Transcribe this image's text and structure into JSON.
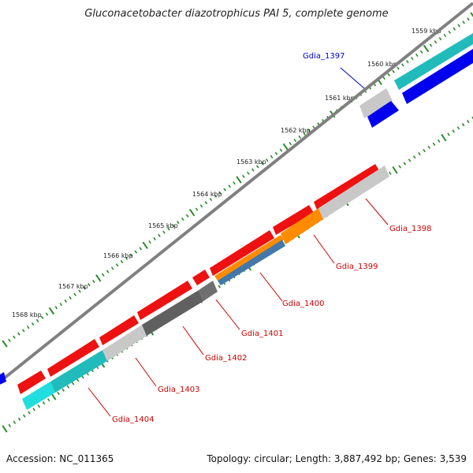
{
  "title": "Gluconacetobacter diazotrophicus PAI 5, complete genome",
  "footer": {
    "accession": "Accession: NC_011365",
    "topology": "Topology: circular; Length: 3,887,492 bp; Genes: 3,539"
  },
  "colors": {
    "backbone": "#808080",
    "tick": "#2a8a2a",
    "forward_label": "#cc0000",
    "reverse_label": "#0000cc"
  },
  "scale": {
    "labels": [
      "1559 kbp",
      "1560 kbp",
      "1561 kbp",
      "1562 kbp",
      "1563 kbp",
      "1564 kbp",
      "1565 kbp",
      "1566 kbp",
      "1567 kbp",
      "1568 kbp"
    ]
  },
  "genes": {
    "labels": [
      {
        "text": "Gdia_1397",
        "strand": "reverse"
      },
      {
        "text": "Gdia_1398",
        "strand": "forward"
      },
      {
        "text": "Gdia_1399",
        "strand": "forward"
      },
      {
        "text": "Gdia_1400",
        "strand": "forward"
      },
      {
        "text": "Gdia_1401",
        "strand": "forward"
      },
      {
        "text": "Gdia_1402",
        "strand": "forward"
      },
      {
        "text": "Gdia_1403",
        "strand": "forward"
      },
      {
        "text": "Gdia_1404",
        "strand": "forward"
      }
    ]
  }
}
